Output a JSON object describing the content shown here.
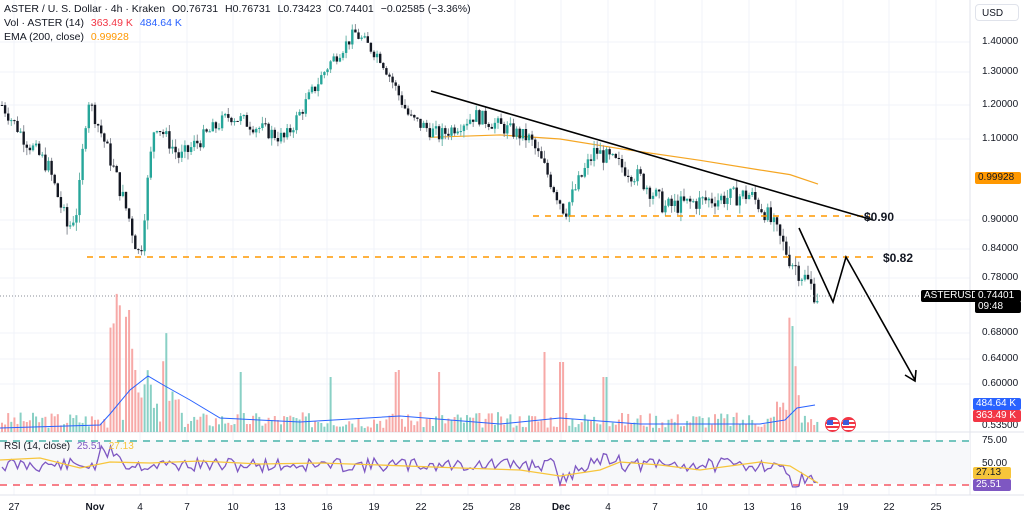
{
  "header": {
    "symbol_title": "ASTER / U. S. Dollar · 4h · Kraken",
    "open": "O0.76731",
    "high": "H0.76731",
    "low": "L0.73423",
    "close": "C0.74401",
    "change": "−0.02585 (−3.36%)",
    "vol_label": "Vol · ASTER (14)",
    "vol_value": "363.49 K",
    "vol_ma_value": "484.64 K",
    "ema_label": "EMA (200, close)",
    "ema_value": "0.99928"
  },
  "rsi_legend": {
    "label": "RSI (14, close)",
    "rsi_value": "25.51",
    "ma_value": "27.13"
  },
  "currency_button": "USD",
  "price_axis": {
    "ticks": [
      "1.40000",
      "1.30000",
      "1.20000",
      "1.10000",
      "0.90000",
      "0.84000",
      "0.78000",
      "0.68000",
      "0.64000",
      "0.60000",
      "0.53500"
    ],
    "ema_tag": "0.99928",
    "symbol_tag": "ASTERUSD",
    "last_price_tag": "0.74401",
    "countdown": "09:48",
    "vol_ma_tag": "484.64 K",
    "vol_tag": "363.49 K"
  },
  "rsi_axis": {
    "ticks": [
      "75.00",
      "50.00"
    ],
    "ma_tag": "27.13",
    "rsi_tag": "25.51"
  },
  "time_axis": [
    "27",
    "Nov",
    "4",
    "7",
    "10",
    "13",
    "16",
    "19",
    "22",
    "25",
    "28",
    "Dec",
    "4",
    "7",
    "10",
    "13",
    "16",
    "19",
    "22",
    "25"
  ],
  "annotations": {
    "level_090": "$0.90",
    "level_082": "$0.82"
  },
  "colors": {
    "up": "#26a69a",
    "down": "#131722",
    "vol_up": "#89d0c5",
    "vol_down": "#f7a9a7",
    "ema": "#f5a623",
    "rsi": "#7e57c2",
    "rsi_ma": "#f7c53b",
    "vol_ma": "#2962ff",
    "level": "#ff9800",
    "rsi_upper": "#26a69a",
    "rsi_lower": "#f23645"
  },
  "chart_data": {
    "type": "candlestick",
    "title": "ASTER / U. S. Dollar · 4h · Kraken",
    "xlabel": "",
    "ylabel": "USD",
    "ylim": [
      0.535,
      1.46
    ],
    "x_ticks": [
      "27",
      "Nov",
      "4",
      "7",
      "10",
      "13",
      "16",
      "19",
      "22",
      "25",
      "28",
      "Dec",
      "4",
      "7",
      "10",
      "13",
      "16",
      "19",
      "22",
      "25"
    ],
    "close_path_key_points": [
      {
        "x": "Oct 26",
        "close": 1.2
      },
      {
        "x": "Oct 28",
        "close": 1.1
      },
      {
        "x": "Oct 30",
        "close": 1.03
      },
      {
        "x": "Oct 31",
        "close": 0.88
      },
      {
        "x": "Nov 1",
        "close": 0.93
      },
      {
        "x": "Nov 2",
        "close": 1.22
      },
      {
        "x": "Nov 4",
        "close": 0.82
      },
      {
        "x": "Nov 6",
        "close": 1.15
      },
      {
        "x": "Nov 8",
        "close": 1.05
      },
      {
        "x": "Nov 12",
        "close": 1.17
      },
      {
        "x": "Nov 14",
        "close": 1.1
      },
      {
        "x": "Nov 17",
        "close": 1.33
      },
      {
        "x": "Nov 18",
        "close": 1.43
      },
      {
        "x": "Nov 19",
        "close": 1.35
      },
      {
        "x": "Nov 21",
        "close": 1.16
      },
      {
        "x": "Nov 23",
        "close": 1.11
      },
      {
        "x": "Nov 25",
        "close": 1.17
      },
      {
        "x": "Nov 28",
        "close": 1.1
      },
      {
        "x": "Nov 30",
        "close": 0.92
      },
      {
        "x": "Dec 2",
        "close": 1.07
      },
      {
        "x": "Dec 5",
        "close": 1.0
      },
      {
        "x": "Dec 7",
        "close": 0.93
      },
      {
        "x": "Dec 10",
        "close": 0.95
      },
      {
        "x": "Dec 13",
        "close": 0.96
      },
      {
        "x": "Dec 14",
        "close": 0.92
      },
      {
        "x": "Dec 15",
        "close": 0.82
      },
      {
        "x": "Dec 16",
        "close": 0.744
      }
    ],
    "last": {
      "open": 0.76731,
      "high": 0.76731,
      "low": 0.73423,
      "close": 0.74401,
      "change": -0.02585,
      "change_pct": -3.36
    },
    "series": [
      {
        "name": "EMA (200, close)",
        "last": 0.99928
      },
      {
        "name": "Vol · ASTER (14)",
        "last": 363490,
        "ma": 484640
      },
      {
        "name": "RSI (14, close)",
        "last": 25.51,
        "ma": 27.13,
        "bands": [
          30,
          75
        ]
      }
    ],
    "annotations": [
      {
        "type": "trendline",
        "from": {
          "x": "Nov 22",
          "y": 1.24
        },
        "to": {
          "x": "Dec 20",
          "y": 0.9
        }
      },
      {
        "type": "hline",
        "y": 0.9,
        "label": "$0.90"
      },
      {
        "type": "hline",
        "y": 0.82,
        "label": "$0.82"
      },
      {
        "type": "projection_path",
        "points": [
          0.86,
          0.75,
          0.82,
          0.6
        ]
      }
    ]
  }
}
